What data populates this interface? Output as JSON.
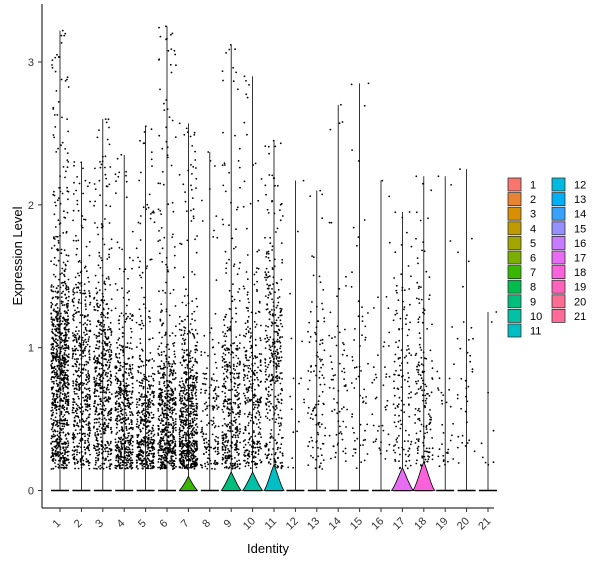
{
  "chart_data": {
    "type": "violin",
    "title": "",
    "xlabel": "Identity",
    "ylabel": "Expression Level",
    "ylim": [
      -0.13,
      3.3
    ],
    "yticks": [
      0,
      1,
      2,
      3
    ],
    "grid": false,
    "legend_position": "right",
    "categories": [
      "1",
      "2",
      "3",
      "4",
      "5",
      "6",
      "7",
      "8",
      "9",
      "10",
      "11",
      "12",
      "13",
      "14",
      "15",
      "16",
      "17",
      "18",
      "19",
      "20",
      "21"
    ],
    "colors": [
      "#F8766D",
      "#EA8331",
      "#D89000",
      "#C09B00",
      "#A3A500",
      "#7CAE00",
      "#39B600",
      "#00BB4E",
      "#00BF7D",
      "#00C1A3",
      "#00BFC4",
      "#00BAE0",
      "#00B0F6",
      "#35A2FF",
      "#9590FF",
      "#C77CFF",
      "#E76BF3",
      "#FA62DB",
      "#FF62BC",
      "#FF6C91",
      "#FF6A98"
    ],
    "series": [
      {
        "identity": "1",
        "max": 3.22,
        "point_density": 1.0,
        "center": 0.75,
        "violin_peak": 0.0,
        "violin_width": 0.0
      },
      {
        "identity": "2",
        "max": 2.3,
        "point_density": 0.55,
        "center": 0.7,
        "violin_peak": 0.0,
        "violin_width": 0.0
      },
      {
        "identity": "3",
        "max": 2.6,
        "point_density": 0.6,
        "center": 0.7,
        "violin_peak": 0.0,
        "violin_width": 0.0
      },
      {
        "identity": "4",
        "max": 2.35,
        "point_density": 0.55,
        "center": 0.45,
        "violin_peak": 0.0,
        "violin_width": 0.0
      },
      {
        "identity": "5",
        "max": 2.55,
        "point_density": 0.5,
        "center": 0.4,
        "violin_peak": 0.0,
        "violin_width": 0.0
      },
      {
        "identity": "6",
        "max": 3.25,
        "point_density": 0.65,
        "center": 0.45,
        "violin_peak": 0.0,
        "violin_width": 0.0
      },
      {
        "identity": "7",
        "max": 2.57,
        "point_density": 0.75,
        "center": 0.45,
        "violin_peak": 0.1,
        "violin_width": 0.45
      },
      {
        "identity": "8",
        "max": 2.37,
        "point_density": 0.18,
        "center": 0.5,
        "violin_peak": 0.0,
        "violin_width": 0.0
      },
      {
        "identity": "9",
        "max": 3.12,
        "point_density": 0.45,
        "center": 0.55,
        "violin_peak": 0.13,
        "violin_width": 0.5
      },
      {
        "identity": "10",
        "max": 2.9,
        "point_density": 0.35,
        "center": 0.6,
        "violin_peak": 0.13,
        "violin_width": 0.5
      },
      {
        "identity": "11",
        "max": 2.45,
        "point_density": 0.4,
        "center": 0.85,
        "violin_peak": 0.18,
        "violin_width": 0.5
      },
      {
        "identity": "12",
        "max": 2.17,
        "point_density": 0.02,
        "center": 0.6,
        "violin_peak": 0.0,
        "violin_width": 0.0
      },
      {
        "identity": "13",
        "max": 2.1,
        "point_density": 0.12,
        "center": 0.6,
        "violin_peak": 0.0,
        "violin_width": 0.0
      },
      {
        "identity": "14",
        "max": 2.7,
        "point_density": 0.08,
        "center": 0.6,
        "violin_peak": 0.0,
        "violin_width": 0.0
      },
      {
        "identity": "15",
        "max": 2.85,
        "point_density": 0.07,
        "center": 0.7,
        "violin_peak": 0.0,
        "violin_width": 0.0
      },
      {
        "identity": "16",
        "max": 2.17,
        "point_density": 0.05,
        "center": 0.6,
        "violin_peak": 0.0,
        "violin_width": 0.0
      },
      {
        "identity": "17",
        "max": 1.95,
        "point_density": 0.15,
        "center": 0.7,
        "violin_peak": 0.16,
        "violin_width": 0.55
      },
      {
        "identity": "18",
        "max": 2.2,
        "point_density": 0.18,
        "center": 0.6,
        "violin_peak": 0.2,
        "violin_width": 0.55
      },
      {
        "identity": "19",
        "max": 2.2,
        "point_density": 0.04,
        "center": 0.6,
        "violin_peak": 0.0,
        "violin_width": 0.0
      },
      {
        "identity": "20",
        "max": 2.25,
        "point_density": 0.04,
        "center": 0.7,
        "violin_peak": 0.0,
        "violin_width": 0.0
      },
      {
        "identity": "21",
        "max": 1.25,
        "point_density": 0.01,
        "center": 0.3,
        "violin_peak": 0.0,
        "violin_width": 0.0
      }
    ]
  }
}
